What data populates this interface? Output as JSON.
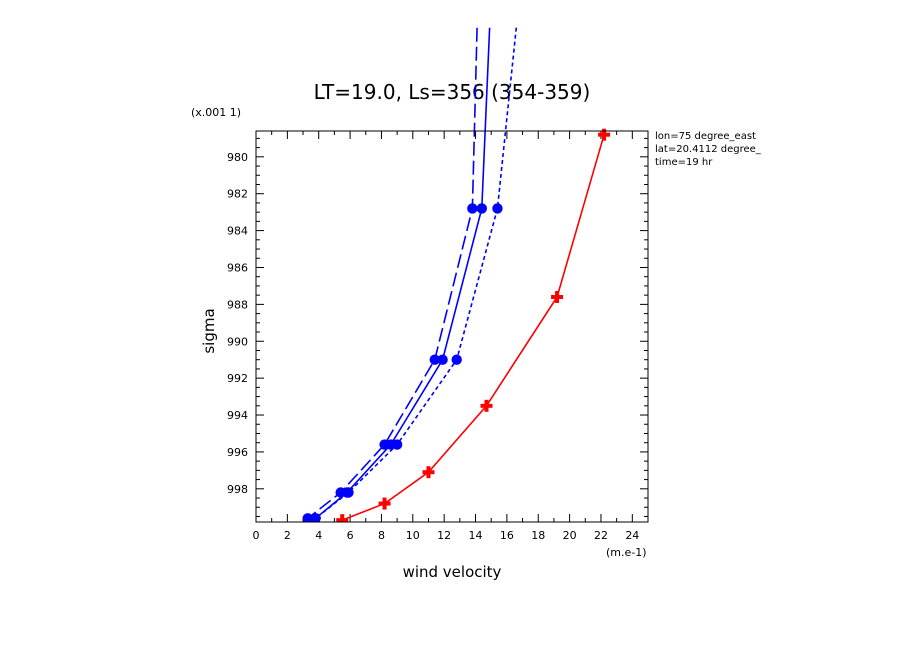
{
  "chart_data": {
    "type": "line",
    "title": "LT=19.0, Ls=356 (354-359)",
    "xlabel": "wind velocity",
    "ylabel": "sigma",
    "x_scale_label": "(m.e-1)",
    "y_scale_label": "(x.001 1)",
    "xlim": [
      0,
      25
    ],
    "ylim": [
      999.8,
      978.6
    ],
    "x_ticks": [
      0,
      2,
      4,
      6,
      8,
      10,
      12,
      14,
      16,
      18,
      20,
      22,
      24
    ],
    "y_ticks": [
      980,
      982,
      984,
      986,
      988,
      990,
      992,
      994,
      996,
      998
    ],
    "info": [
      "lon=75 degree_east",
      "lat=20.4112 degree_",
      "time=19 hr"
    ],
    "series": [
      {
        "name": "red",
        "color": "#ff0000",
        "dash": "solid",
        "marker": "plus",
        "x": [
          22.2,
          19.2,
          14.7,
          11.0,
          8.2,
          5.5
        ],
        "y": [
          978.8,
          987.6,
          993.5,
          997.1,
          998.8,
          999.7
        ]
      },
      {
        "name": "blue-solid",
        "color": "#0000ff",
        "dash": "solid",
        "marker": "dot",
        "x": [
          14.9,
          14.4,
          11.9,
          8.6,
          5.8,
          3.8
        ],
        "y": [
          973.0,
          982.8,
          991.0,
          995.6,
          998.2,
          999.6
        ]
      },
      {
        "name": "blue-long-dash",
        "color": "#0000ff",
        "dash": "long",
        "marker": "dot",
        "x": [
          14.1,
          13.8,
          11.4,
          8.2,
          5.4,
          3.3
        ],
        "y": [
          973.0,
          982.8,
          991.0,
          995.6,
          998.2,
          999.6
        ]
      },
      {
        "name": "blue-short-dash",
        "color": "#0000ff",
        "dash": "short",
        "marker": "dot",
        "x": [
          16.6,
          15.4,
          12.8,
          9.0,
          5.9,
          3.8
        ],
        "y": [
          973.0,
          982.8,
          991.0,
          995.6,
          998.2,
          999.6
        ]
      }
    ]
  }
}
